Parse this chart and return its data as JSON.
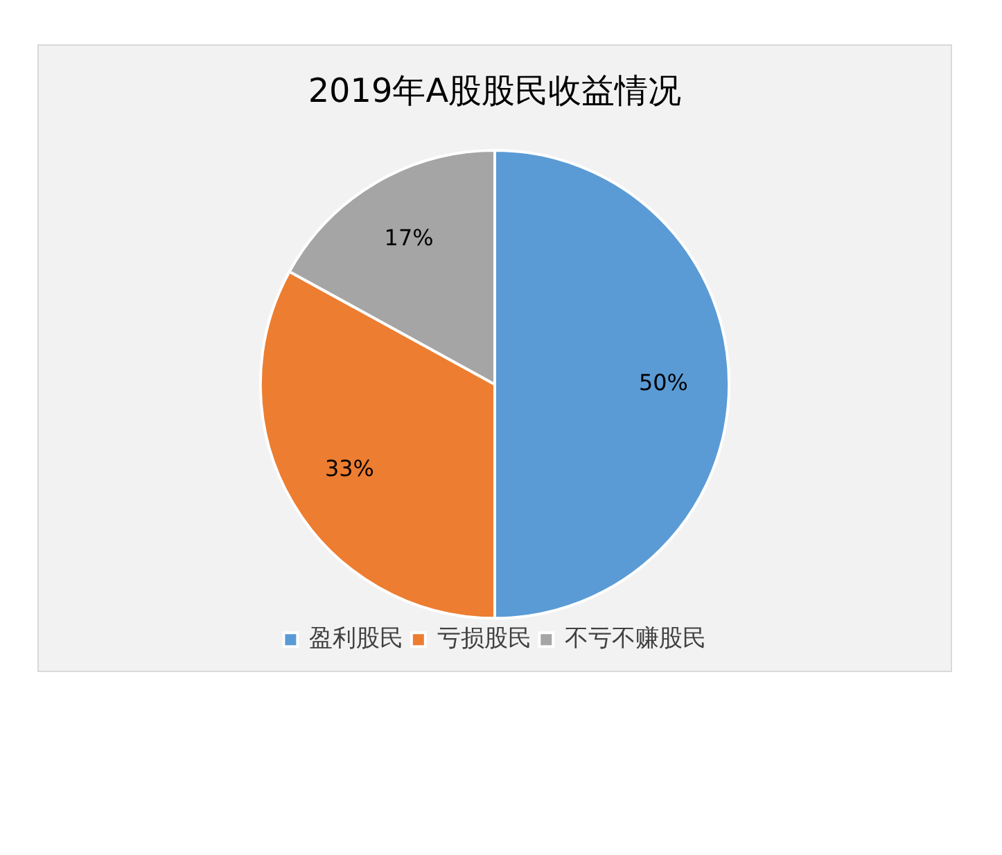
{
  "chart_data": {
    "type": "pie",
    "title": "2019年A股股民收益情况",
    "categories": [
      "盈利股民",
      "亏损股民",
      "不亏不赚股民"
    ],
    "values": [
      50,
      33,
      17
    ],
    "colors": [
      "#5b9bd5",
      "#ed7d31",
      "#a5a5a5"
    ],
    "value_labels": [
      "50%",
      "33%",
      "17%"
    ],
    "legend": "bottom"
  }
}
